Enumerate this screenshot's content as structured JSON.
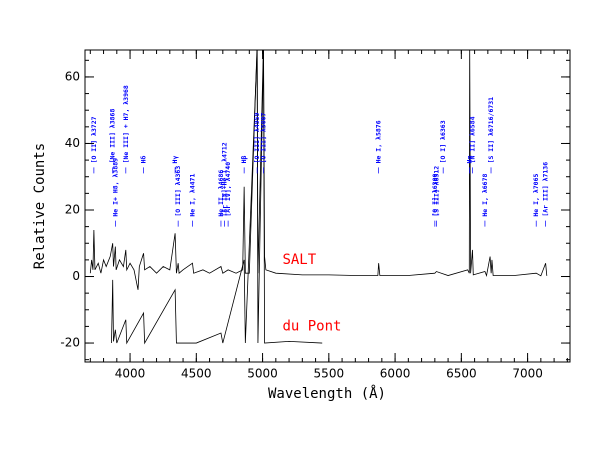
{
  "chart_data": {
    "type": "line",
    "xlabel": "Wavelength (Å)",
    "ylabel": "Relative Counts",
    "xlim": [
      3660,
      7320
    ],
    "ylim": [
      -25.7,
      68.1
    ],
    "xticks": [
      4000,
      4500,
      5000,
      5500,
      6000,
      6500,
      7000
    ],
    "yticks": [
      -20,
      0,
      20,
      40,
      60
    ],
    "xminor_step": 100,
    "yminor_step": 5,
    "series": [
      {
        "name": "SALT",
        "color": "#000000",
        "label_color": "#ff0000",
        "x": [
          3700,
          3710,
          3720,
          3727,
          3735,
          3760,
          3780,
          3800,
          3820,
          3850,
          3869,
          3875,
          3889,
          3895,
          3920,
          3950,
          3968,
          3975,
          4000,
          4030,
          4060,
          4070,
          4102,
          4110,
          4150,
          4200,
          4250,
          4300,
          4340,
          4350,
          4363,
          4370,
          4400,
          4471,
          4480,
          4550,
          4600,
          4686,
          4700,
          4740,
          4800,
          4850,
          4861,
          4870,
          4900,
          4959,
          4965,
          5007,
          5015,
          5025,
          5100,
          5300,
          5500,
          5700,
          5870,
          5876,
          5885,
          6100,
          6300,
          6312,
          6363,
          6400,
          6548,
          6560,
          6563,
          6570,
          6584,
          6590,
          6678,
          6690,
          6717,
          6725,
          6731,
          6740,
          6900,
          7065,
          7100,
          7136,
          7145
        ],
        "values": [
          1,
          5,
          2,
          14,
          2,
          4,
          1,
          5,
          3,
          6,
          10,
          3,
          9,
          2,
          5,
          3,
          8,
          2,
          4,
          2,
          -4,
          3,
          7,
          2,
          3,
          1,
          3,
          2,
          13,
          1,
          4,
          1,
          2,
          4,
          1,
          2,
          1,
          3,
          1,
          2,
          1,
          2,
          27,
          1,
          1,
          70,
          1,
          70,
          6,
          2,
          1,
          0.5,
          0.5,
          0.3,
          0.3,
          4,
          0.3,
          0.3,
          1,
          1.5,
          0.8,
          0.3,
          2,
          1,
          70,
          1,
          8,
          0.5,
          1.5,
          0.3,
          6,
          1,
          5,
          0.3,
          0.3,
          1,
          0.2,
          4,
          0.2
        ]
      },
      {
        "name": "du Pont",
        "color": "#000000",
        "label_color": "#ff0000",
        "x": [
          3860,
          3869,
          3875,
          3889,
          3900,
          3968,
          3975,
          4102,
          4110,
          4340,
          4350,
          4500,
          4686,
          4700,
          4861,
          4870,
          4959,
          4965,
          5007,
          5015,
          5200,
          5450
        ],
        "values": [
          -20,
          -1,
          -19.5,
          -16,
          -20,
          -13,
          -20,
          -11,
          -20,
          -4,
          -20,
          -20,
          -17,
          -20,
          5,
          -20,
          68,
          -20,
          68,
          -20,
          -19.5,
          -20
        ]
      }
    ],
    "series_label_positions": [
      {
        "x": 5150,
        "y": 5
      },
      {
        "x": 5150,
        "y": -15
      }
    ],
    "annotation_color": "#0000ff",
    "annotations": [
      {
        "text": "[O II] λ3727",
        "wavelength": 3727,
        "y": 34
      },
      {
        "text": "[Ne III] λ3868",
        "wavelength": 3869,
        "y": 34
      },
      {
        "text": "[Ne III] + H7, λ3968",
        "wavelength": 3968,
        "y": 34
      },
      {
        "text": "Hδ",
        "wavelength": 4102,
        "y": 34
      },
      {
        "text": "Hγ",
        "wavelength": 4340,
        "y": 34
      },
      {
        "text": "Hβ",
        "wavelength": 4861,
        "y": 34
      },
      {
        "text": "[O III] λ4959",
        "wavelength": 4959,
        "y": 34
      },
      {
        "text": "[O III] λ5007",
        "wavelength": 5007,
        "y": 34
      },
      {
        "text": "He I, λ5876",
        "wavelength": 5876,
        "y": 34
      },
      {
        "text": "[O I] λ6363",
        "wavelength": 6363,
        "y": 34
      },
      {
        "text": "Hα",
        "wavelength": 6563,
        "y": 34
      },
      {
        "text": "[N II] λ6584",
        "wavelength": 6584,
        "y": 34
      },
      {
        "text": "[S II] λ6716/6731",
        "wavelength": 6724,
        "y": 34
      },
      {
        "text": "He I+ H8, λ3889",
        "wavelength": 3889,
        "y": 18
      },
      {
        "text": "[O III] λ4363",
        "wavelength": 4363,
        "y": 18
      },
      {
        "text": "He I, λ4471",
        "wavelength": 4471,
        "y": 18
      },
      {
        "text": "He II, λ4686",
        "wavelength": 4686,
        "y": 18
      },
      {
        "text": "[Ar IV]+He I, λ4712",
        "wavelength": 4712,
        "y": 18
      },
      {
        "text": "[Ar IV], λ4740",
        "wavelength": 4740,
        "y": 18
      },
      {
        "text": "[O I] λ6300",
        "wavelength": 6300,
        "y": 18
      },
      {
        "text": "[S III] λ6312",
        "wavelength": 6312,
        "y": 18
      },
      {
        "text": "He I, λ6678",
        "wavelength": 6678,
        "y": 18
      },
      {
        "text": "He I, λ7065",
        "wavelength": 7065,
        "y": 18
      },
      {
        "text": "[Ar III] λ7136",
        "wavelength": 7136,
        "y": 18
      }
    ]
  }
}
